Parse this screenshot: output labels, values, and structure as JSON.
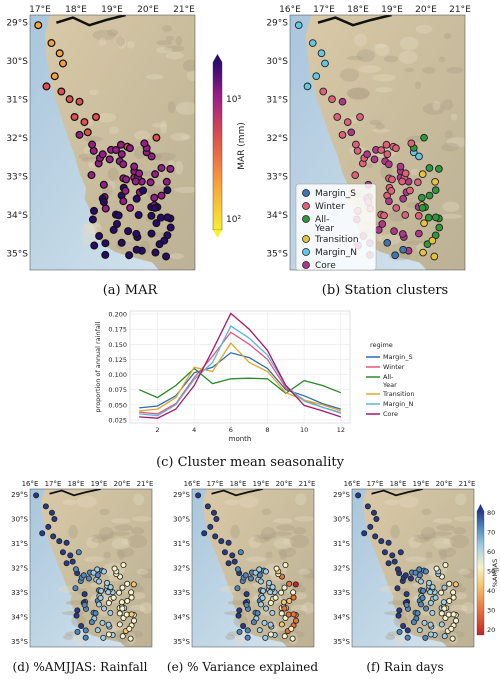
{
  "captions": {
    "a": "(a) MAR",
    "b": "(b) Station clusters",
    "c": "(c) Cluster mean seasonality",
    "d": "(d) %AMJJAS: Rainfall",
    "e": "(e) % Variance explained",
    "f": "(f) Rain days"
  },
  "map_top": {
    "lon_labels": [
      "17°E",
      "18°E",
      "19°E",
      "20°E",
      "21°E"
    ],
    "lon_labels_b": [
      "16°E",
      "17°E",
      "18°E",
      "19°E",
      "20°E",
      "21°E"
    ],
    "lat_labels": [
      "29°S",
      "30°S",
      "31°S",
      "32°S",
      "33°S",
      "34°S",
      "35°S"
    ]
  },
  "map_bottom": {
    "lon_labels": [
      "16°E",
      "17°E",
      "18°E",
      "19°E",
      "20°E",
      "21°E"
    ],
    "lat_labels": [
      "29°S",
      "30°S",
      "31°S",
      "32°S",
      "33°S",
      "34°S",
      "35°S"
    ]
  },
  "mar_colorbar": {
    "label": "MAR (mm)",
    "ticks": [
      "10³",
      "10²"
    ]
  },
  "amjjas_colorbar": {
    "label": "%AMJJAS",
    "ticks": [
      "80",
      "70",
      "60",
      "50",
      "40",
      "30",
      "20"
    ]
  },
  "cluster_legend": [
    {
      "name": "Margin_S",
      "color": "#3a78b5"
    },
    {
      "name": "Winter",
      "color": "#e0607a"
    },
    {
      "name": "All-\nYear",
      "color": "#2d9a3a"
    },
    {
      "name": "Transition",
      "color": "#e6c43a"
    },
    {
      "name": "Margin_N",
      "color": "#63c7e6"
    },
    {
      "name": "Core",
      "color": "#b0368a"
    }
  ],
  "chart_data": {
    "type": "line",
    "x": [
      1,
      2,
      3,
      4,
      5,
      6,
      7,
      8,
      9,
      10,
      11,
      12
    ],
    "xlabel": "month",
    "ylabel": "proportion of annual rainfall",
    "xticks": [
      "2",
      "4",
      "6",
      "8",
      "10",
      "12"
    ],
    "yticks": [
      "0.025",
      "0.050",
      "0.075",
      "0.100",
      "0.125",
      "0.150",
      "0.175",
      "0.200"
    ],
    "ylim": [
      0.02,
      0.205
    ],
    "legend_title": "regime",
    "series": [
      {
        "name": "Margin_S",
        "color": "#2a6db5",
        "values": [
          0.045,
          0.048,
          0.065,
          0.103,
          0.112,
          0.136,
          0.128,
          0.11,
          0.075,
          0.065,
          0.052,
          0.043
        ]
      },
      {
        "name": "Winter",
        "color": "#e8567a",
        "values": [
          0.038,
          0.035,
          0.052,
          0.095,
          0.13,
          0.17,
          0.15,
          0.125,
          0.078,
          0.058,
          0.046,
          0.037
        ]
      },
      {
        "name": "All-\nYear",
        "color": "#2a8a2a",
        "values": [
          0.075,
          0.062,
          0.082,
          0.11,
          0.085,
          0.093,
          0.094,
          0.093,
          0.069,
          0.09,
          0.082,
          0.07
        ]
      },
      {
        "name": "Transition",
        "color": "#e0a828",
        "values": [
          0.04,
          0.043,
          0.062,
          0.112,
          0.105,
          0.152,
          0.12,
          0.105,
          0.07,
          0.058,
          0.05,
          0.04
        ]
      },
      {
        "name": "Margin_N",
        "color": "#5ab6dc",
        "values": [
          0.035,
          0.032,
          0.05,
          0.092,
          0.12,
          0.18,
          0.16,
          0.132,
          0.082,
          0.056,
          0.046,
          0.036
        ]
      },
      {
        "name": "Core",
        "color": "#a8186a",
        "values": [
          0.03,
          0.028,
          0.043,
          0.082,
          0.14,
          0.201,
          0.175,
          0.14,
          0.082,
          0.049,
          0.04,
          0.03
        ]
      }
    ]
  }
}
